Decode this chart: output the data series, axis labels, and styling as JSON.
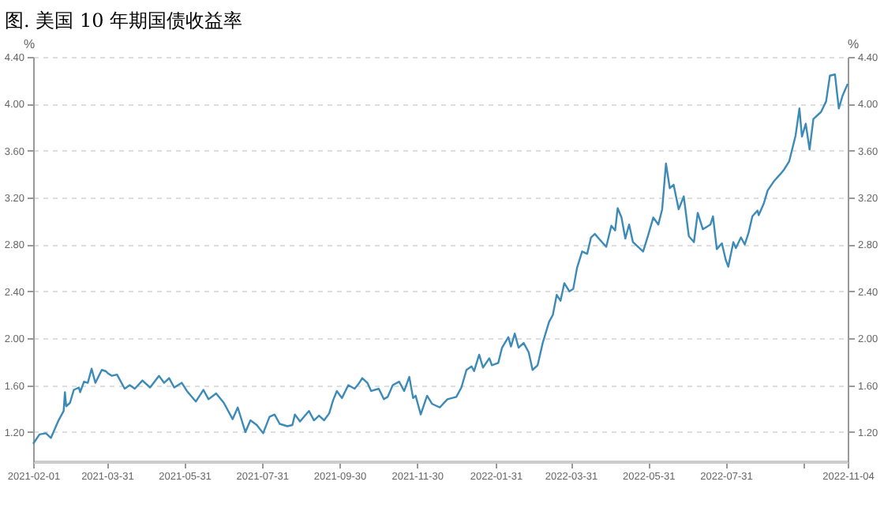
{
  "chart_data": {
    "type": "line",
    "title": "图. 美国 10 年期国债收益率",
    "ylabel": "%",
    "y2label": "%",
    "x": [
      "2021-02-01",
      "2021-02-06",
      "2021-02-11",
      "2021-02-15",
      "2021-02-21",
      "2021-02-25",
      "2021-02-26",
      "2021-02-27",
      "2021-03-02",
      "2021-03-05",
      "2021-03-09",
      "2021-03-10",
      "2021-03-13",
      "2021-03-16",
      "2021-03-19",
      "2021-03-22",
      "2021-03-27",
      "2021-03-30",
      "2021-04-01",
      "2021-04-04",
      "2021-04-08",
      "2021-04-14",
      "2021-04-18",
      "2021-04-22",
      "2021-04-28",
      "2021-05-04",
      "2021-05-11",
      "2021-05-15",
      "2021-05-19",
      "2021-05-23",
      "2021-05-29",
      "2021-06-02",
      "2021-06-09",
      "2021-06-15",
      "2021-06-19",
      "2021-06-25",
      "2021-07-01",
      "2021-07-08",
      "2021-07-12",
      "2021-07-18",
      "2021-07-22",
      "2021-07-27",
      "2021-08-01",
      "2021-08-06",
      "2021-08-10",
      "2021-08-14",
      "2021-08-20",
      "2021-08-24",
      "2021-08-26",
      "2021-08-30",
      "2021-09-06",
      "2021-09-10",
      "2021-09-14",
      "2021-09-18",
      "2021-09-22",
      "2021-09-25",
      "2021-09-28",
      "2021-10-02",
      "2021-10-07",
      "2021-10-12",
      "2021-10-15",
      "2021-10-18",
      "2021-10-22",
      "2021-10-25",
      "2021-10-31",
      "2021-11-04",
      "2021-11-07",
      "2021-11-11",
      "2021-11-16",
      "2021-11-20",
      "2021-11-24",
      "2021-11-27",
      "2021-11-29",
      "2021-12-03",
      "2021-12-08",
      "2021-12-12",
      "2021-12-16",
      "2021-12-18",
      "2021-12-24",
      "2021-12-31",
      "2022-01-04",
      "2022-01-08",
      "2022-01-12",
      "2022-01-14",
      "2022-01-18",
      "2022-01-21",
      "2022-01-26",
      "2022-01-28",
      "2022-02-02",
      "2022-02-05",
      "2022-02-10",
      "2022-02-12",
      "2022-02-15",
      "2022-02-18",
      "2022-02-22",
      "2022-02-26",
      "2022-03-01",
      "2022-03-05",
      "2022-03-09",
      "2022-03-14",
      "2022-03-17",
      "2022-03-20",
      "2022-03-23",
      "2022-03-26",
      "2022-03-30",
      "2022-04-02",
      "2022-04-05",
      "2022-04-09",
      "2022-04-13",
      "2022-04-16",
      "2022-04-19",
      "2022-04-23",
      "2022-04-28",
      "2022-05-02",
      "2022-05-05",
      "2022-05-07",
      "2022-05-10",
      "2022-05-13",
      "2022-05-16",
      "2022-05-19",
      "2022-05-22",
      "2022-05-27",
      "2022-05-31",
      "2022-06-04",
      "2022-06-08",
      "2022-06-11",
      "2022-06-14",
      "2022-06-17",
      "2022-06-20",
      "2022-06-24",
      "2022-06-28",
      "2022-07-02",
      "2022-07-06",
      "2022-07-09",
      "2022-07-13",
      "2022-07-19",
      "2022-07-21",
      "2022-07-24",
      "2022-07-28",
      "2022-07-31",
      "2022-08-02",
      "2022-08-06",
      "2022-08-08",
      "2022-08-12",
      "2022-08-15",
      "2022-08-18",
      "2022-08-21",
      "2022-08-25",
      "2022-08-26",
      "2022-08-30",
      "2022-09-02",
      "2022-09-07",
      "2022-09-12",
      "2022-09-15",
      "2022-09-19",
      "2022-09-24",
      "2022-09-27",
      "2022-09-29",
      "2022-10-02",
      "2022-10-05",
      "2022-10-08",
      "2022-10-14",
      "2022-10-18",
      "2022-10-21",
      "2022-10-25",
      "2022-10-28",
      "2022-10-31",
      "2022-11-04"
    ],
    "series": [
      {
        "color": "#3b8ab8",
        "values": [
          1.1,
          1.18,
          1.19,
          1.15,
          1.3,
          1.38,
          1.54,
          1.42,
          1.45,
          1.56,
          1.58,
          1.54,
          1.63,
          1.62,
          1.74,
          1.62,
          1.73,
          1.72,
          1.7,
          1.68,
          1.69,
          1.57,
          1.6,
          1.57,
          1.64,
          1.58,
          1.68,
          1.62,
          1.66,
          1.58,
          1.62,
          1.55,
          1.46,
          1.56,
          1.48,
          1.53,
          1.45,
          1.31,
          1.41,
          1.2,
          1.3,
          1.26,
          1.19,
          1.33,
          1.35,
          1.27,
          1.25,
          1.26,
          1.35,
          1.29,
          1.38,
          1.3,
          1.34,
          1.3,
          1.36,
          1.47,
          1.55,
          1.49,
          1.6,
          1.57,
          1.61,
          1.66,
          1.62,
          1.55,
          1.57,
          1.48,
          1.5,
          1.6,
          1.63,
          1.55,
          1.67,
          1.49,
          1.51,
          1.35,
          1.51,
          1.44,
          1.42,
          1.41,
          1.48,
          1.5,
          1.58,
          1.73,
          1.76,
          1.72,
          1.86,
          1.75,
          1.83,
          1.77,
          1.79,
          1.92,
          2.01,
          1.93,
          2.04,
          1.92,
          1.96,
          1.88,
          1.73,
          1.77,
          1.96,
          2.14,
          2.2,
          2.37,
          2.32,
          2.47,
          2.4,
          2.42,
          2.6,
          2.74,
          2.72,
          2.86,
          2.89,
          2.84,
          2.78,
          2.96,
          2.92,
          3.11,
          3.03,
          2.85,
          2.97,
          2.82,
          2.79,
          2.74,
          2.88,
          3.03,
          2.97,
          3.1,
          3.49,
          3.28,
          3.31,
          3.1,
          3.21,
          2.87,
          2.82,
          3.07,
          2.93,
          2.97,
          3.04,
          2.76,
          2.81,
          2.67,
          2.61,
          2.82,
          2.77,
          2.86,
          2.8,
          2.9,
          3.04,
          3.09,
          3.05,
          3.15,
          3.26,
          3.34,
          3.4,
          3.44,
          3.51,
          3.73,
          3.96,
          3.72,
          3.83,
          3.61,
          3.87,
          3.93,
          4.02,
          4.24,
          4.25,
          3.96,
          4.07,
          4.17
        ]
      }
    ],
    "xlim": [
      "2021-02-01",
      "2022-11-04"
    ],
    "xticks": [
      "2021-02-01",
      "2021-03-31",
      "2021-05-31",
      "2021-07-31",
      "2021-09-30",
      "2021-11-30",
      "2022-01-31",
      "2022-03-31",
      "2022-05-31",
      "2022-07-31",
      {
        "value": "2022-09-30",
        "label": null
      },
      "2022-11-04"
    ],
    "ylim": [
      0.95,
      4.4
    ],
    "yticks": [
      {
        "value": 1.2,
        "label": "1.20"
      },
      {
        "value": 1.6,
        "label": "1.60"
      },
      {
        "value": 2.0,
        "label": "2.00"
      },
      {
        "value": 2.4,
        "label": "2.40"
      },
      {
        "value": 2.8,
        "label": "2.80"
      },
      {
        "value": 3.2,
        "label": "3.20"
      },
      {
        "value": 3.6,
        "label": "3.60"
      },
      {
        "value": 4.0,
        "label": "4.00"
      },
      {
        "value": 4.4,
        "label": "4.40"
      }
    ],
    "y2lim": [
      0.95,
      4.4
    ],
    "y2ticks": [
      {
        "value": 1.2,
        "label": "1.20"
      },
      {
        "value": 1.6,
        "label": "1.60"
      },
      {
        "value": 2.0,
        "label": "2.00"
      },
      {
        "value": 2.4,
        "label": "2.40"
      },
      {
        "value": 2.8,
        "label": "2.80"
      },
      {
        "value": 3.2,
        "label": "3.20"
      },
      {
        "value": 3.6,
        "label": "3.60"
      },
      {
        "value": 4.0,
        "label": "4.00"
      },
      {
        "value": 4.4,
        "label": "4.40"
      }
    ],
    "grid": "y"
  }
}
